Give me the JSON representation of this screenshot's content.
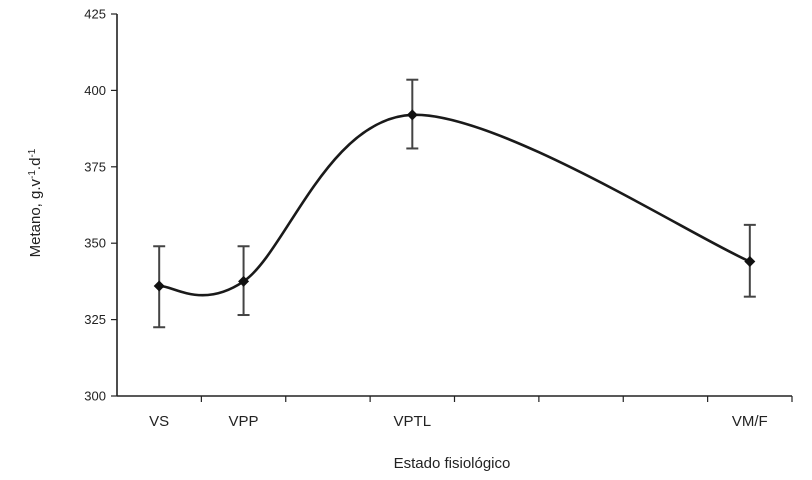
{
  "chart_data": {
    "type": "line",
    "xlabel": "Estado fisiológico",
    "ylabel_main": "Metano, g.v",
    "ylabel_sup1": "-1",
    "ylabel_mid": ".d",
    "ylabel_sup2": "-1",
    "ylim": [
      300,
      425
    ],
    "yticks": [
      300,
      325,
      350,
      375,
      400,
      425
    ],
    "x_range": [
      0,
      8
    ],
    "x_minor_ticks": [
      1,
      2,
      3,
      4,
      5,
      6,
      7,
      8
    ],
    "categories": [
      {
        "label": "VS",
        "x": 0.5
      },
      {
        "label": "VPP",
        "x": 1.5
      },
      {
        "label": "VPTL",
        "x": 3.5
      },
      {
        "label": "VM/F",
        "x": 7.5
      }
    ],
    "series": [
      {
        "x": [
          0.5,
          1.5,
          3.5,
          7.5
        ],
        "values": [
          336,
          337.5,
          392,
          344
        ],
        "err_low": [
          322.5,
          326.5,
          381,
          332.5
        ],
        "err_high": [
          349,
          349,
          403.5,
          356
        ]
      }
    ],
    "grid": false,
    "legend": "none"
  }
}
